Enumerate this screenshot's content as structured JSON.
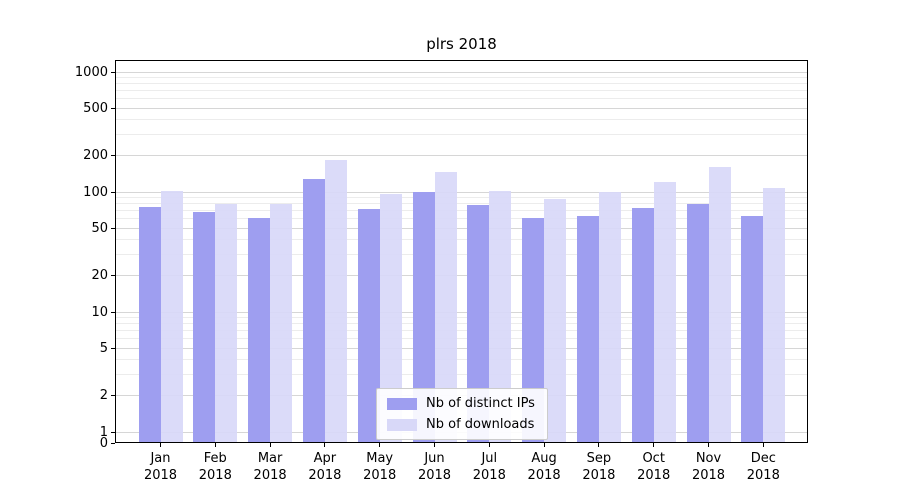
{
  "title": "plrs 2018",
  "chart_data": {
    "type": "bar",
    "title": "plrs 2018",
    "categories": [
      "Jan",
      "Feb",
      "Mar",
      "Apr",
      "May",
      "Jun",
      "Jul",
      "Aug",
      "Sep",
      "Oct",
      "Nov",
      "Dec"
    ],
    "year": "2018",
    "series": [
      {
        "name": "Nb of distinct IPs",
        "color": "#9e9ef0",
        "values": [
          75,
          68,
          61,
          128,
          72,
          100,
          78,
          61,
          63,
          73,
          80,
          63
        ]
      },
      {
        "name": "Nb of downloads",
        "color": "#d8d8f8",
        "values": [
          102,
          79,
          79,
          186,
          97,
          147,
          101,
          88,
          100,
          122,
          161,
          107
        ]
      }
    ],
    "yticks": [
      0,
      1,
      2,
      5,
      10,
      20,
      50,
      100,
      200,
      500,
      1000
    ],
    "scale": "symlog",
    "ylim": [
      0,
      1000
    ],
    "grid": "horizontal",
    "legend_position": "lower center"
  }
}
